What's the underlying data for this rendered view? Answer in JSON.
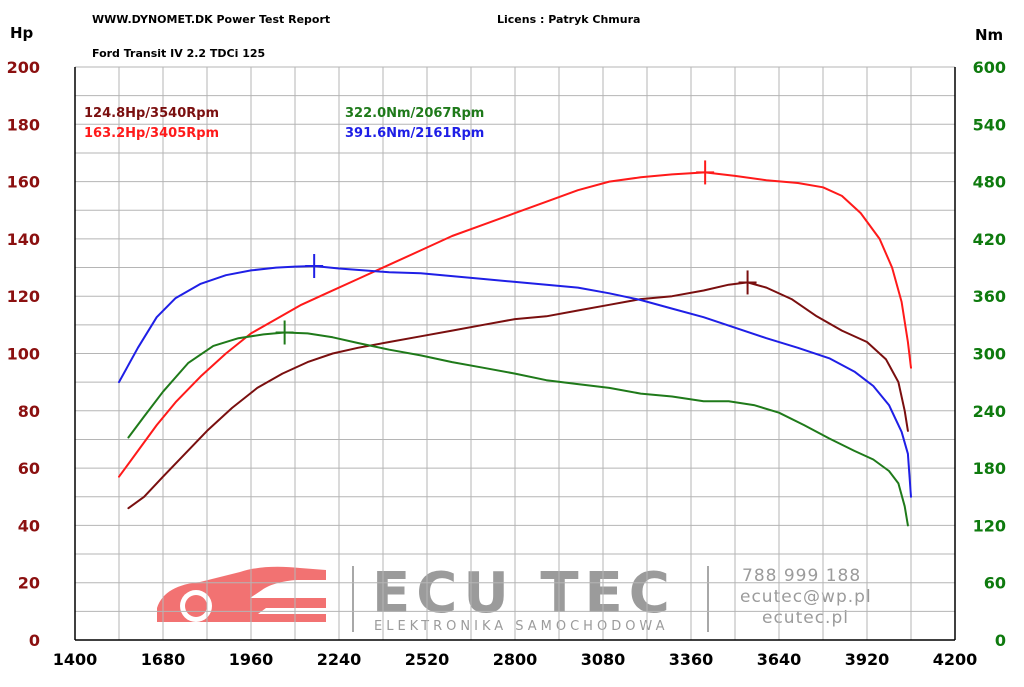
{
  "header": {
    "site": "WWW.DYNOMET.DK  Power Test Report",
    "license": "Licens :  Patryk Chmura",
    "vehicle": "Ford Transit IV 2.2 TDCi 125",
    "left_unit": "Hp",
    "right_unit": "Nm"
  },
  "watermark": {
    "brand": "ECU TEC",
    "tagline": "ELEKTRONIKA SAMOCHODOWA",
    "phone": "788 999 188",
    "email": "ecutec@wp.pl",
    "web": "ecutec.pl"
  },
  "colors": {
    "stock_hp": "#7a0f0f",
    "tuned_hp": "#ff1a1a",
    "stock_nm": "#1f7a1a",
    "tuned_nm": "#1f1fe6",
    "left_axis": "#8b1010",
    "right_axis": "#0e7a0e"
  },
  "chart_data": {
    "type": "line",
    "xlim": [
      1400,
      4200
    ],
    "x_ticks": [
      1400,
      1680,
      1960,
      2240,
      2520,
      2800,
      3080,
      3360,
      3640,
      3920,
      4200
    ],
    "ylim_left": [
      0,
      200
    ],
    "y_ticks_left": [
      0,
      20,
      40,
      60,
      80,
      100,
      120,
      140,
      160,
      180,
      200
    ],
    "ylim_right": [
      0,
      600
    ],
    "y_ticks_right": [
      0,
      60,
      120,
      180,
      240,
      300,
      360,
      420,
      480,
      540,
      600
    ],
    "grid": true,
    "annotations": [
      {
        "text": "124.8Hp/3540Rpm",
        "series": "stock_hp"
      },
      {
        "text": "163.2Hp/3405Rpm",
        "series": "tuned_hp"
      },
      {
        "text": "322.0Nm/2067Rpm",
        "series": "stock_nm"
      },
      {
        "text": "391.6Nm/2161Rpm",
        "series": "tuned_nm"
      }
    ],
    "series": [
      {
        "id": "stock_hp",
        "axis": "left",
        "color": "#7a0f0f",
        "peak": {
          "x": 3540,
          "y": 124.8
        },
        "points": [
          [
            1570,
            46
          ],
          [
            1620,
            50
          ],
          [
            1680,
            57
          ],
          [
            1750,
            65
          ],
          [
            1820,
            73
          ],
          [
            1900,
            81
          ],
          [
            1980,
            88
          ],
          [
            2060,
            93
          ],
          [
            2140,
            97
          ],
          [
            2220,
            100
          ],
          [
            2300,
            102
          ],
          [
            2400,
            104
          ],
          [
            2500,
            106
          ],
          [
            2600,
            108
          ],
          [
            2700,
            110
          ],
          [
            2800,
            112
          ],
          [
            2900,
            113
          ],
          [
            3000,
            115
          ],
          [
            3100,
            117
          ],
          [
            3200,
            119
          ],
          [
            3300,
            120
          ],
          [
            3400,
            122
          ],
          [
            3480,
            124
          ],
          [
            3540,
            124.8
          ],
          [
            3600,
            123
          ],
          [
            3680,
            119
          ],
          [
            3760,
            113
          ],
          [
            3840,
            108
          ],
          [
            3920,
            104
          ],
          [
            3980,
            98
          ],
          [
            4020,
            90
          ],
          [
            4040,
            80
          ],
          [
            4050,
            73
          ]
        ]
      },
      {
        "id": "tuned_hp",
        "axis": "left",
        "color": "#ff1a1a",
        "peak": {
          "x": 3405,
          "y": 163.2
        },
        "points": [
          [
            1540,
            57
          ],
          [
            1600,
            66
          ],
          [
            1660,
            75
          ],
          [
            1720,
            83
          ],
          [
            1800,
            92
          ],
          [
            1880,
            100
          ],
          [
            1960,
            107
          ],
          [
            2040,
            112
          ],
          [
            2120,
            117
          ],
          [
            2200,
            121
          ],
          [
            2300,
            126
          ],
          [
            2400,
            131
          ],
          [
            2500,
            136
          ],
          [
            2600,
            141
          ],
          [
            2700,
            145
          ],
          [
            2800,
            149
          ],
          [
            2900,
            153
          ],
          [
            3000,
            157
          ],
          [
            3100,
            160
          ],
          [
            3200,
            161.5
          ],
          [
            3300,
            162.5
          ],
          [
            3405,
            163.2
          ],
          [
            3500,
            162
          ],
          [
            3600,
            160.5
          ],
          [
            3700,
            159.5
          ],
          [
            3780,
            158
          ],
          [
            3840,
            155
          ],
          [
            3900,
            149
          ],
          [
            3960,
            140
          ],
          [
            4000,
            130
          ],
          [
            4030,
            118
          ],
          [
            4050,
            104
          ],
          [
            4060,
            95
          ]
        ]
      },
      {
        "id": "stock_nm",
        "axis": "right",
        "color": "#1f7a1a",
        "peak": {
          "x": 2067,
          "y": 322.0
        },
        "points": [
          [
            1570,
            212
          ],
          [
            1620,
            234
          ],
          [
            1680,
            260
          ],
          [
            1760,
            290
          ],
          [
            1840,
            308
          ],
          [
            1920,
            316
          ],
          [
            2000,
            320
          ],
          [
            2067,
            322
          ],
          [
            2140,
            321
          ],
          [
            2220,
            317
          ],
          [
            2300,
            311
          ],
          [
            2400,
            304
          ],
          [
            2500,
            298
          ],
          [
            2600,
            291
          ],
          [
            2700,
            285
          ],
          [
            2800,
            279
          ],
          [
            2900,
            272
          ],
          [
            3000,
            268
          ],
          [
            3100,
            264
          ],
          [
            3200,
            258
          ],
          [
            3300,
            255
          ],
          [
            3400,
            250
          ],
          [
            3480,
            250
          ],
          [
            3560,
            246
          ],
          [
            3640,
            238
          ],
          [
            3720,
            225
          ],
          [
            3800,
            211
          ],
          [
            3880,
            198
          ],
          [
            3940,
            189
          ],
          [
            3990,
            177
          ],
          [
            4020,
            164
          ],
          [
            4040,
            140
          ],
          [
            4050,
            120
          ]
        ]
      },
      {
        "id": "tuned_nm",
        "axis": "right",
        "color": "#1f1fe6",
        "peak": {
          "x": 2161,
          "y": 391.6
        },
        "points": [
          [
            1540,
            270
          ],
          [
            1600,
            306
          ],
          [
            1660,
            338
          ],
          [
            1720,
            358
          ],
          [
            1800,
            373
          ],
          [
            1880,
            382
          ],
          [
            1960,
            387
          ],
          [
            2040,
            390
          ],
          [
            2100,
            391
          ],
          [
            2161,
            391.6
          ],
          [
            2240,
            389
          ],
          [
            2320,
            387
          ],
          [
            2400,
            385
          ],
          [
            2500,
            384
          ],
          [
            2600,
            381
          ],
          [
            2700,
            378
          ],
          [
            2800,
            375
          ],
          [
            2900,
            372
          ],
          [
            3000,
            369
          ],
          [
            3100,
            363
          ],
          [
            3200,
            356
          ],
          [
            3300,
            347
          ],
          [
            3400,
            338
          ],
          [
            3500,
            327
          ],
          [
            3600,
            316
          ],
          [
            3700,
            306
          ],
          [
            3800,
            295
          ],
          [
            3880,
            281
          ],
          [
            3940,
            266
          ],
          [
            3990,
            246
          ],
          [
            4030,
            218
          ],
          [
            4050,
            195
          ],
          [
            4060,
            150
          ]
        ]
      }
    ]
  }
}
